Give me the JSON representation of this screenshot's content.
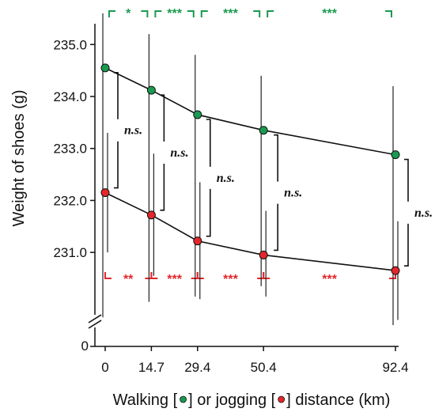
{
  "chart_data": {
    "type": "line",
    "xlabel_parts": [
      "Walking [",
      "] or jogging [",
      "] distance (km)"
    ],
    "ylabel": "Weight of shoes (g)",
    "x": [
      0,
      14.7,
      29.4,
      50.4,
      92.4
    ],
    "x_tick_labels": [
      "0",
      "14.7",
      "29.4",
      "50.4",
      "92.4"
    ],
    "y_ticks": [
      231.0,
      232.0,
      233.0,
      234.0,
      235.0
    ],
    "y_tick_labels": [
      "231.0",
      "232.0",
      "233.0",
      "234.0",
      "235.0"
    ],
    "y_zero_label": "0",
    "ylim": [
      229.8,
      235.4
    ],
    "axis_break": true,
    "series": [
      {
        "key": "walking",
        "color": "#1a9a50",
        "values": [
          234.55,
          234.12,
          233.65,
          233.35,
          232.88
        ],
        "err_low": [
          229.75,
          230.05,
          230.15,
          230.35,
          229.6
        ],
        "err_high": [
          235.6,
          235.2,
          234.8,
          234.4,
          234.2
        ]
      },
      {
        "key": "jogging",
        "color": "#e3262b",
        "values": [
          232.15,
          231.72,
          231.22,
          230.95,
          230.65
        ],
        "err_low": [
          231.0,
          230.55,
          230.1,
          230.15,
          229.7
        ],
        "err_high": [
          233.3,
          232.9,
          232.35,
          231.8,
          231.6
        ]
      }
    ],
    "between_series_labels": [
      "n.s.",
      "n.s.",
      "n.s.",
      "n.s.",
      "n.s."
    ],
    "top_significance": [
      {
        "from": 0,
        "to": 14.7,
        "label": "*",
        "color": "#1a9a50"
      },
      {
        "from": 14.7,
        "to": 29.4,
        "label": "***",
        "color": "#1a9a50"
      },
      {
        "from": 29.4,
        "to": 50.4,
        "label": "***",
        "color": "#1a9a50"
      },
      {
        "from": 50.4,
        "to": 92.4,
        "label": "***",
        "color": "#1a9a50"
      }
    ],
    "bottom_significance": [
      {
        "from": 0,
        "to": 14.7,
        "label": "**",
        "color": "#e3262b"
      },
      {
        "from": 14.7,
        "to": 29.4,
        "label": "***",
        "color": "#e3262b"
      },
      {
        "from": 29.4,
        "to": 50.4,
        "label": "***",
        "color": "#e3262b"
      },
      {
        "from": 50.4,
        "to": 92.4,
        "label": "***",
        "color": "#e3262b"
      }
    ]
  }
}
